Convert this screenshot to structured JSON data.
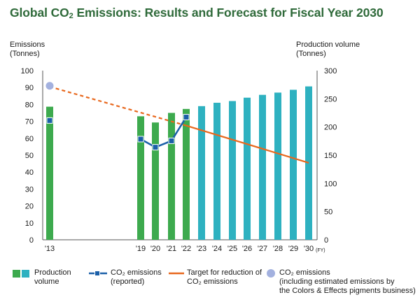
{
  "title": {
    "prefix": "Global CO",
    "sub": "2",
    "suffix": " Emissions: Results and Forecast for Fiscal Year 2030"
  },
  "axes": {
    "left_title_1": "Emissions",
    "left_title_2": "(Tonnes)",
    "right_title_1": "Production volume",
    "right_title_2": "(Tonnes)",
    "fy_label": "(FY)"
  },
  "legend": {
    "production_1": "Production",
    "production_2": "volume",
    "reported_1": "CO₂ emissions",
    "reported_2": "(reported)",
    "target_1": "Target for reduction of",
    "target_2": "CO₂ emissions",
    "estimated_1": "CO₂ emissions",
    "estimated_2": "(including estimated emissions by",
    "estimated_3": "the Colors & Effects pigments business)"
  },
  "colors": {
    "production_actual": "#3daa4e",
    "production_forecast": "#2eb1c0",
    "reported": "#1a5fa8",
    "target": "#e8671c",
    "estimated": "#a3b1df",
    "title": "#2f6a3a"
  },
  "chart_data": {
    "type": "bar",
    "categories": [
      "'13",
      "'19",
      "'20",
      "'21",
      "'22",
      "'23",
      "'24",
      "'25",
      "'26",
      "'27",
      "'28",
      "'29",
      "'30"
    ],
    "left_axis": {
      "ylim": [
        0,
        100
      ],
      "ticks": [
        0,
        10,
        20,
        30,
        40,
        50,
        60,
        70,
        80,
        90,
        100
      ]
    },
    "right_axis": {
      "ylim": [
        0,
        300
      ],
      "ticks": [
        0,
        50,
        100,
        150,
        200,
        250,
        300
      ]
    },
    "series": [
      {
        "name": "Production volume",
        "kind": "bar",
        "axis": "right",
        "values": [
          236,
          219,
          208,
          225,
          232,
          237,
          243,
          246,
          252,
          257,
          261,
          266,
          272
        ],
        "segment": [
          "actual",
          "actual",
          "actual",
          "actual",
          "actual",
          "forecast",
          "forecast",
          "forecast",
          "forecast",
          "forecast",
          "forecast",
          "forecast",
          "forecast"
        ]
      },
      {
        "name": "CO₂ emissions (reported)",
        "kind": "line-markers",
        "axis": "left",
        "values": [
          70.5,
          59.5,
          54.7,
          58.5,
          72.5,
          null,
          null,
          null,
          null,
          null,
          null,
          null,
          null
        ],
        "connect": [
          "'19",
          "'20",
          "'21",
          "'22"
        ]
      },
      {
        "name": "Target for reduction of CO₂ emissions",
        "kind": "line",
        "axis": "left",
        "points": [
          [
            "'13",
            90.5
          ],
          [
            "'22",
            67.5
          ],
          [
            "'30",
            45.5
          ]
        ],
        "dashed_until": "'22"
      },
      {
        "name": "CO₂ emissions (including estimated emissions by the Colors & Effects pigments business)",
        "kind": "marker",
        "axis": "left",
        "values": [
          91,
          null,
          null,
          null,
          null,
          null,
          null,
          null,
          null,
          null,
          null,
          null,
          null
        ]
      }
    ]
  }
}
